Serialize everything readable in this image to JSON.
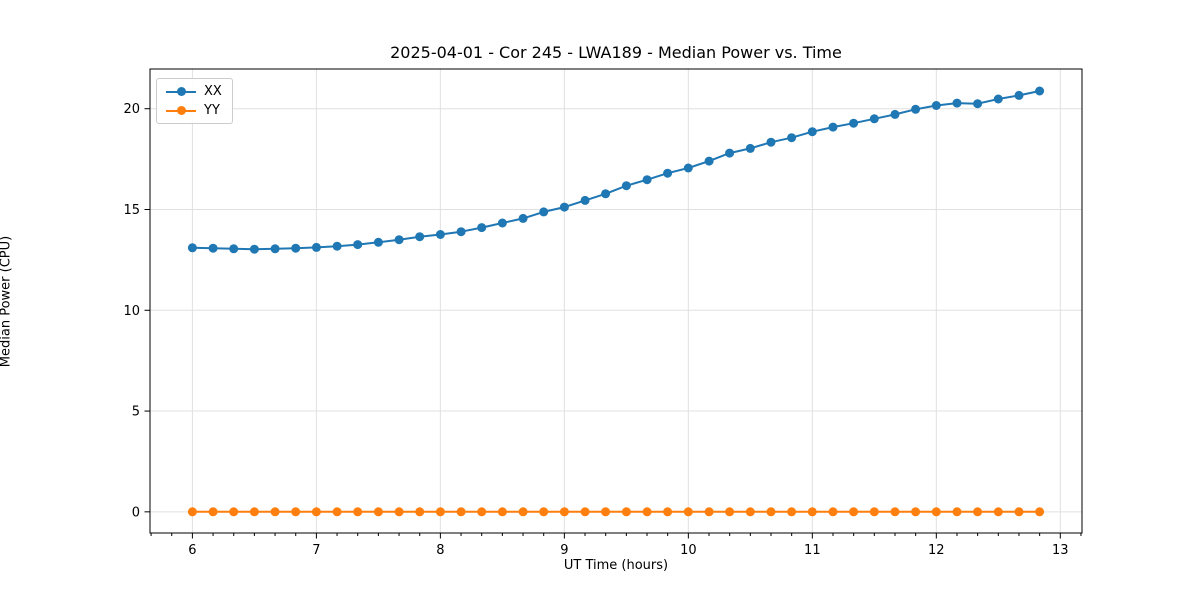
{
  "chart_data": {
    "type": "line",
    "title": "2025-04-01 - Cor 245 - LWA189 - Median Power vs. Time",
    "xlabel": "UT Time (hours)",
    "ylabel": "Median Power (CPU)",
    "xlim": [
      5.658,
      13.175
    ],
    "ylim": [
      -1.05,
      21.97
    ],
    "x_ticks": [
      6,
      7,
      8,
      9,
      10,
      11,
      12,
      13
    ],
    "y_ticks": [
      0,
      5,
      10,
      15,
      20
    ],
    "x_minor_tick_interval_hours": 0.1667,
    "grid": "major gridlines only, light gray",
    "legend_position": "upper left",
    "colors": {
      "xx": "#1f77b4",
      "yy": "#ff7f0e",
      "grid": "#e0e0e0",
      "spine": "#000000"
    },
    "x": [
      6.0,
      6.167,
      6.333,
      6.5,
      6.667,
      6.833,
      7.0,
      7.167,
      7.333,
      7.5,
      7.667,
      7.833,
      8.0,
      8.167,
      8.333,
      8.5,
      8.667,
      8.833,
      9.0,
      9.167,
      9.333,
      9.5,
      9.667,
      9.833,
      10.0,
      10.167,
      10.333,
      10.5,
      10.667,
      10.833,
      11.0,
      11.167,
      11.333,
      11.5,
      11.667,
      11.833,
      12.0,
      12.167,
      12.333,
      12.5,
      12.667,
      12.833
    ],
    "series": [
      {
        "name": "XX",
        "color": "#1f77b4",
        "marker": "circle",
        "values": [
          13.1,
          13.08,
          13.05,
          13.03,
          13.05,
          13.08,
          13.12,
          13.18,
          13.26,
          13.37,
          13.5,
          13.65,
          13.76,
          13.9,
          14.1,
          14.33,
          14.56,
          14.88,
          15.12,
          15.45,
          15.78,
          16.18,
          16.48,
          16.8,
          17.06,
          17.4,
          17.8,
          18.03,
          18.34,
          18.56,
          18.86,
          19.09,
          19.28,
          19.5,
          19.72,
          19.97,
          20.16,
          20.28,
          20.25,
          20.48,
          20.66,
          20.88
        ]
      },
      {
        "name": "YY",
        "color": "#ff7f0e",
        "marker": "circle",
        "values": [
          0.0,
          0.0,
          0.0,
          0.0,
          0.0,
          0.0,
          0.0,
          0.0,
          0.0,
          0.0,
          0.0,
          0.0,
          0.0,
          0.0,
          0.0,
          0.0,
          0.0,
          0.0,
          0.0,
          0.0,
          0.0,
          0.0,
          0.0,
          0.0,
          0.0,
          0.0,
          0.0,
          0.0,
          0.0,
          0.0,
          0.0,
          0.0,
          0.0,
          0.0,
          0.0,
          0.0,
          0.0,
          0.0,
          0.0,
          0.0,
          0.0,
          0.0
        ]
      }
    ]
  }
}
